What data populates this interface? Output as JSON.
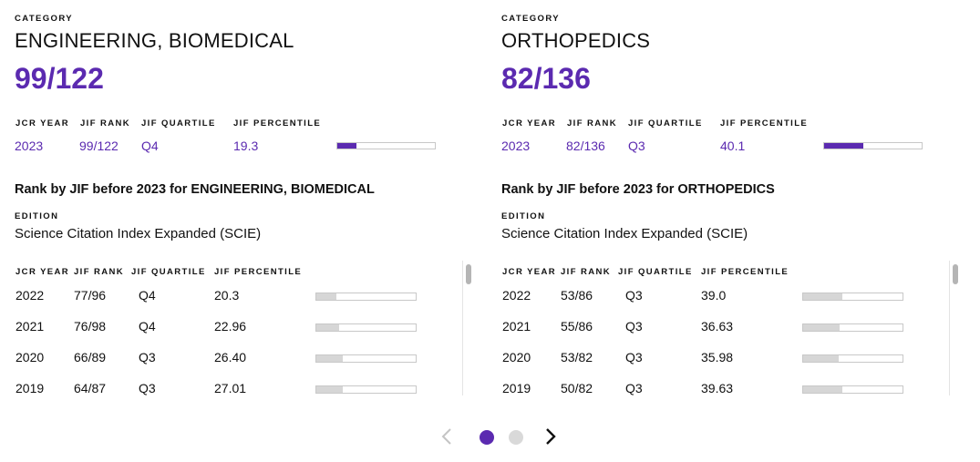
{
  "cards": [
    {
      "category_caption": "CATEGORY",
      "category_name": "ENGINEERING, BIOMEDICAL",
      "rank": "99/122",
      "headers": {
        "year": "JCR YEAR",
        "rank": "JIF RANK",
        "quartile": "JIF QUARTILE",
        "percentile": "JIF PERCENTILE"
      },
      "current": {
        "year": "2023",
        "rank": "99/122",
        "quartile": "Q4",
        "percentile": "19.3",
        "percentile_value": 19.3
      },
      "history_title": "Rank by JIF before 2023 for ENGINEERING, BIOMEDICAL",
      "edition_caption": "EDITION",
      "edition": "Science Citation Index Expanded (SCIE)",
      "history": [
        {
          "year": "2022",
          "rank": "77/96",
          "quartile": "Q4",
          "percentile": "20.3",
          "percentile_value": 20.3
        },
        {
          "year": "2021",
          "rank": "76/98",
          "quartile": "Q4",
          "percentile": "22.96",
          "percentile_value": 22.96
        },
        {
          "year": "2020",
          "rank": "66/89",
          "quartile": "Q3",
          "percentile": "26.40",
          "percentile_value": 26.4
        },
        {
          "year": "2019",
          "rank": "64/87",
          "quartile": "Q3",
          "percentile": "27.01",
          "percentile_value": 27.01
        }
      ]
    },
    {
      "category_caption": "CATEGORY",
      "category_name": "ORTHOPEDICS",
      "rank": "82/136",
      "headers": {
        "year": "JCR YEAR",
        "rank": "JIF RANK",
        "quartile": "JIF QUARTILE",
        "percentile": "JIF PERCENTILE"
      },
      "current": {
        "year": "2023",
        "rank": "82/136",
        "quartile": "Q3",
        "percentile": "40.1",
        "percentile_value": 40.1
      },
      "history_title": "Rank by JIF before 2023 for ORTHOPEDICS",
      "edition_caption": "EDITION",
      "edition": "Science Citation Index Expanded (SCIE)",
      "history": [
        {
          "year": "2022",
          "rank": "53/86",
          "quartile": "Q3",
          "percentile": "39.0",
          "percentile_value": 39.0
        },
        {
          "year": "2021",
          "rank": "55/86",
          "quartile": "Q3",
          "percentile": "36.63",
          "percentile_value": 36.63
        },
        {
          "year": "2020",
          "rank": "53/82",
          "quartile": "Q3",
          "percentile": "35.98",
          "percentile_value": 35.98
        },
        {
          "year": "2019",
          "rank": "50/82",
          "quartile": "Q3",
          "percentile": "39.63",
          "percentile_value": 39.63
        }
      ]
    }
  ],
  "pager": {
    "prev_icon": "chevron-left-icon",
    "next_icon": "chevron-right-icon",
    "active_index": 0,
    "page_count": 2
  },
  "colors": {
    "accent": "#5b2ab0",
    "bar_muted": "#d6d6d6",
    "bar_border": "#c8c8c8",
    "dot_inactive": "#d9d9d9",
    "chevron_disabled": "#c4c4c4",
    "chevron_active": "#111111"
  }
}
